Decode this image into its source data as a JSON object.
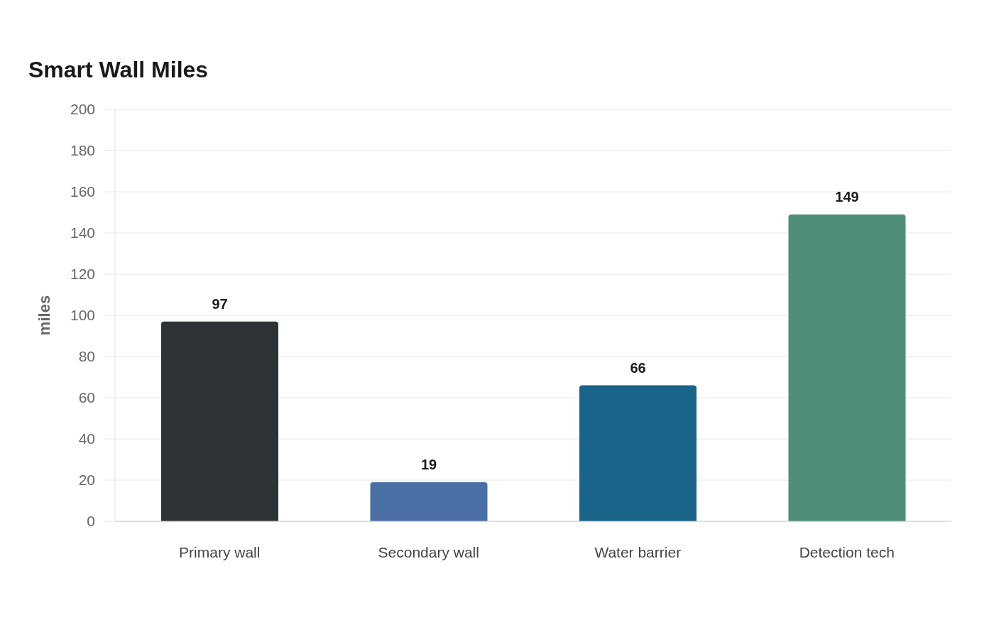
{
  "chart_data": {
    "type": "bar",
    "title": "Smart Wall Miles",
    "ylabel": "miles",
    "categories": [
      "Primary wall",
      "Secondary wall",
      "Water barrier",
      "Detection tech"
    ],
    "values": [
      97,
      19,
      66,
      149
    ],
    "colors": [
      "#2e3436",
      "#4a6fa5",
      "#1a6389",
      "#4e8e7b"
    ],
    "ylim": [
      0,
      200
    ],
    "yticks": [
      0,
      20,
      40,
      60,
      80,
      100,
      120,
      140,
      160,
      180,
      200
    ],
    "grid": "y",
    "legend": false,
    "data_labels": true
  }
}
